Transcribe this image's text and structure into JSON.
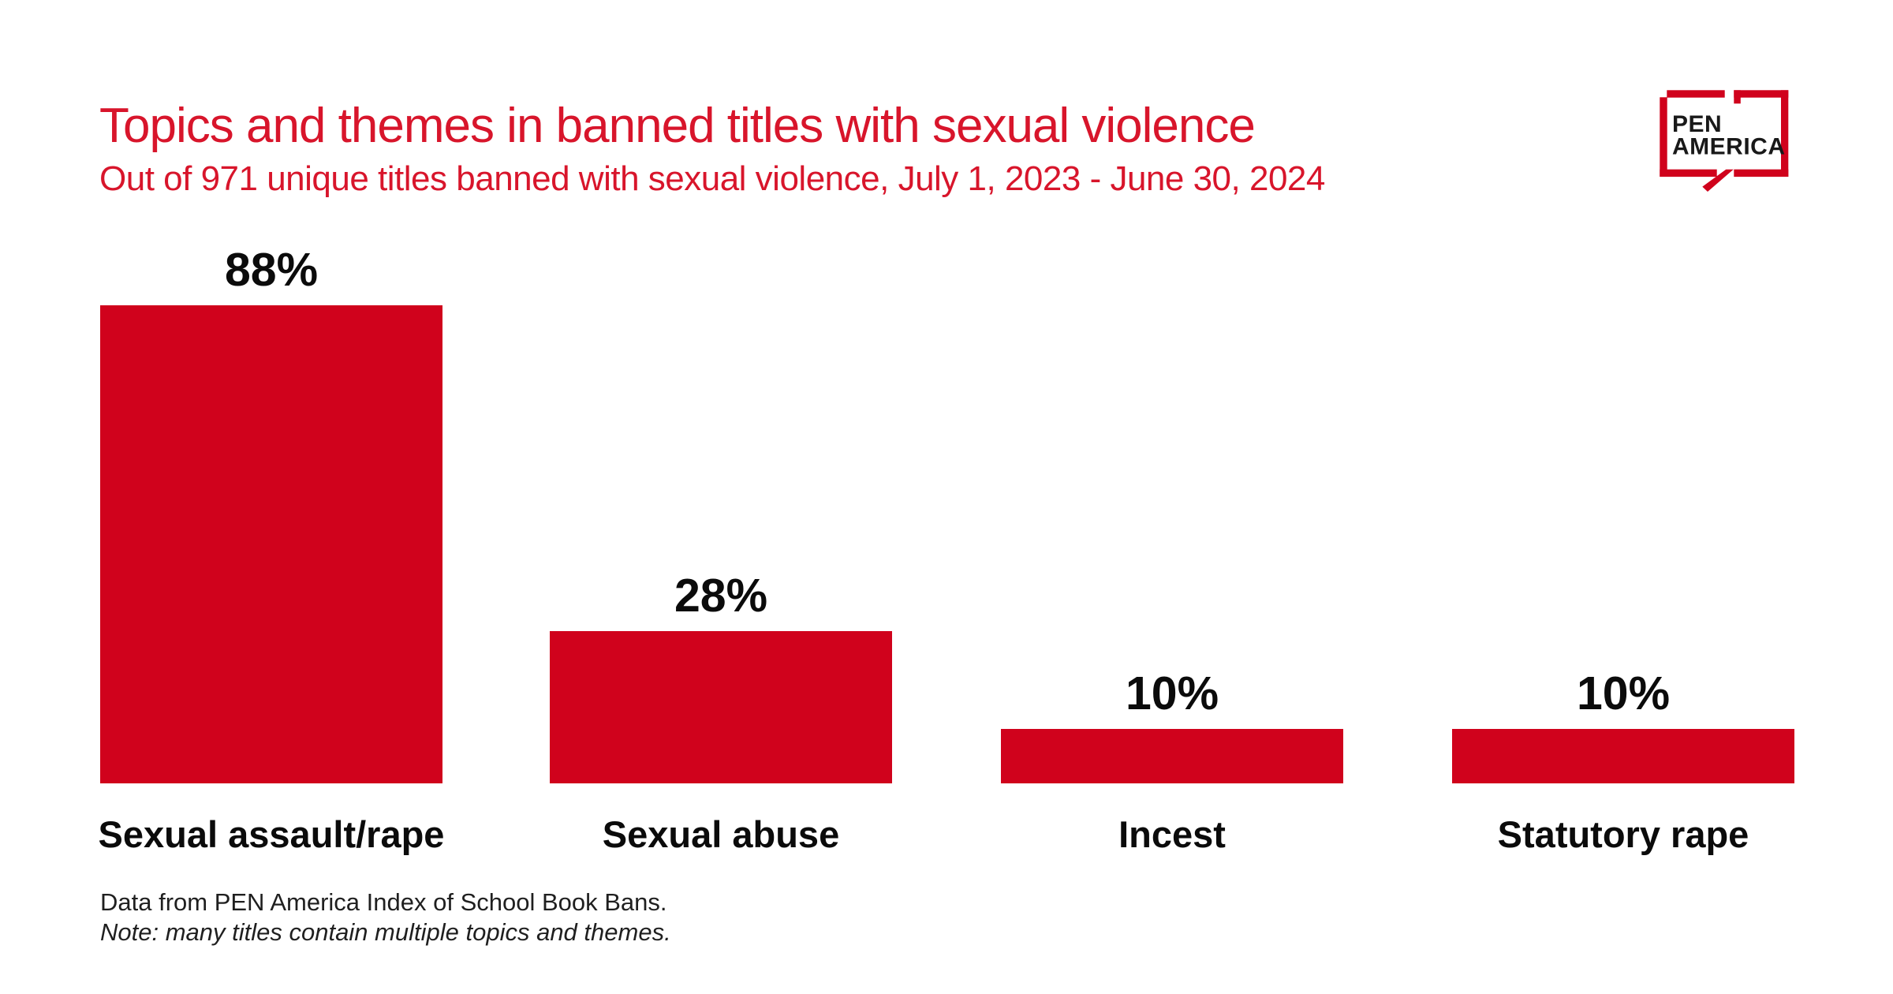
{
  "header": {
    "title": "Topics and themes in banned titles with sexual violence",
    "subtitle": "Out of 971 unique titles banned with sexual violence, July 1, 2023 - June 30, 2024"
  },
  "logo": {
    "line1": "PEN",
    "line2": "AMERICA"
  },
  "chart_data": {
    "type": "bar",
    "title": "Topics and themes in banned titles with sexual violence",
    "subtitle": "Out of 971 unique titles banned with sexual violence, July 1, 2023 - June 30, 2024",
    "categories": [
      "Sexual assault/rape",
      "Sexual abuse",
      "Incest",
      "Statutory rape"
    ],
    "values": [
      88,
      28,
      10,
      10
    ],
    "value_labels": [
      "88%",
      "28%",
      "10%",
      "10%"
    ],
    "unit": "percent",
    "ylim": [
      0,
      100
    ],
    "grid": false,
    "legend": false,
    "bar_color": "#d0021c"
  },
  "footnotes": {
    "source": "Data from PEN America Index of School Book Bans.",
    "note": "Note: many titles contain multiple topics and themes."
  },
  "colors": {
    "bar_red": "#d0021c",
    "title_red": "#d8152b",
    "label_black": "#0b0b0b",
    "footnote_black": "#1f1f1f",
    "logo_red": "#d0021c",
    "logo_text": "#191919"
  }
}
